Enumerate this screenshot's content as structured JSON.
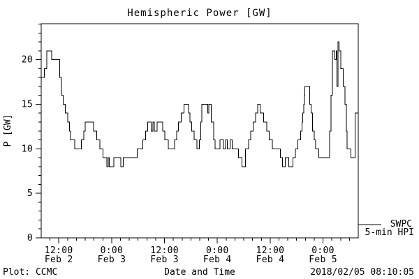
{
  "figure": {
    "background": "#ffffff",
    "foreground": "#000000"
  },
  "footer": {
    "left": "Plot: CCMC",
    "right": "2018/02/05 08:10:05"
  },
  "chart_data": {
    "type": "line",
    "subtype": "step",
    "title": "Hemispheric Power [GW]",
    "xlabel": "Date and Time",
    "ylabel": "P [GW]",
    "ylim": [
      0,
      24.04
    ],
    "grid": false,
    "y_major_ticks": [
      0,
      5,
      10,
      15,
      20
    ],
    "y_minor_step": 1,
    "x_range_hours": [
      0,
      72
    ],
    "x_hours_origin_label": "Feb 2 08:00",
    "x_minor_step_hours": 2,
    "x_ticks": [
      {
        "t": 4,
        "time": "12:00",
        "date": "Feb 2"
      },
      {
        "t": 16,
        "time": "0:00",
        "date": "Feb 3"
      },
      {
        "t": 28,
        "time": "12:00",
        "date": "Feb 3"
      },
      {
        "t": 40,
        "time": "0:00",
        "date": "Feb 4"
      },
      {
        "t": 52,
        "time": "12:00",
        "date": "Feb 4"
      },
      {
        "t": 64,
        "time": "0:00",
        "date": "Feb 5"
      }
    ],
    "legend": {
      "name": "SWPC",
      "sublabel": "5-min HPI",
      "position": "right-outside"
    },
    "line_color": "#000000",
    "series": [
      {
        "name": "SWPC 5-min HPI",
        "steps_hours_gw": [
          [
            0,
            18
          ],
          [
            0.75,
            19
          ],
          [
            1.25,
            21
          ],
          [
            2.4,
            20
          ],
          [
            4.2,
            18
          ],
          [
            4.6,
            16
          ],
          [
            5.0,
            15
          ],
          [
            5.5,
            14
          ],
          [
            6.0,
            13
          ],
          [
            6.4,
            12
          ],
          [
            6.7,
            11
          ],
          [
            7.6,
            10
          ],
          [
            9.1,
            11
          ],
          [
            9.7,
            12
          ],
          [
            10.0,
            13
          ],
          [
            11.9,
            12
          ],
          [
            12.6,
            11
          ],
          [
            13.3,
            10
          ],
          [
            14.0,
            9
          ],
          [
            14.9,
            8
          ],
          [
            15.2,
            9
          ],
          [
            15.5,
            8
          ],
          [
            16.5,
            9
          ],
          [
            18.1,
            8
          ],
          [
            18.6,
            9
          ],
          [
            21.8,
            10
          ],
          [
            23.1,
            11
          ],
          [
            23.7,
            12
          ],
          [
            24.2,
            13
          ],
          [
            25.0,
            12
          ],
          [
            25.4,
            13
          ],
          [
            25.7,
            12
          ],
          [
            26.3,
            13
          ],
          [
            27.6,
            12
          ],
          [
            28.1,
            11
          ],
          [
            28.9,
            10
          ],
          [
            30.3,
            11
          ],
          [
            30.8,
            12
          ],
          [
            31.2,
            13
          ],
          [
            31.8,
            14
          ],
          [
            32.4,
            15
          ],
          [
            33.5,
            14
          ],
          [
            33.8,
            13
          ],
          [
            34.2,
            12
          ],
          [
            34.7,
            11
          ],
          [
            35.4,
            10
          ],
          [
            35.9,
            11
          ],
          [
            36.2,
            13
          ],
          [
            36.5,
            15
          ],
          [
            37.8,
            14
          ],
          [
            38.1,
            15
          ],
          [
            38.6,
            13
          ],
          [
            39.2,
            11
          ],
          [
            39.5,
            10
          ],
          [
            40.6,
            11
          ],
          [
            41.4,
            10
          ],
          [
            41.9,
            11
          ],
          [
            42.3,
            10
          ],
          [
            42.9,
            11
          ],
          [
            43.4,
            10
          ],
          [
            44.8,
            9
          ],
          [
            45.6,
            8
          ],
          [
            46.4,
            10
          ],
          [
            47.1,
            11
          ],
          [
            47.6,
            12
          ],
          [
            48.1,
            13
          ],
          [
            48.7,
            14
          ],
          [
            49.2,
            15
          ],
          [
            49.7,
            14
          ],
          [
            50.5,
            13
          ],
          [
            51.2,
            12
          ],
          [
            51.8,
            11
          ],
          [
            52.5,
            10
          ],
          [
            54.3,
            9
          ],
          [
            54.8,
            8
          ],
          [
            55.4,
            9
          ],
          [
            56.2,
            8
          ],
          [
            57.2,
            9
          ],
          [
            57.7,
            10
          ],
          [
            58.3,
            11
          ],
          [
            58.9,
            12
          ],
          [
            59.2,
            13
          ],
          [
            59.4,
            14
          ],
          [
            59.6,
            15
          ],
          [
            59.8,
            16
          ],
          [
            59.9,
            17
          ],
          [
            61.0,
            15
          ],
          [
            61.3,
            14
          ],
          [
            61.6,
            12
          ],
          [
            62.0,
            11
          ],
          [
            62.3,
            10
          ],
          [
            63.0,
            9
          ],
          [
            65.5,
            12
          ],
          [
            65.8,
            16
          ],
          [
            66.1,
            21
          ],
          [
            66.7,
            20
          ],
          [
            67.0,
            21
          ],
          [
            67.2,
            17
          ],
          [
            67.4,
            22
          ],
          [
            67.6,
            21
          ],
          [
            68.0,
            19
          ],
          [
            68.6,
            17
          ],
          [
            69.0,
            15
          ],
          [
            69.3,
            12
          ],
          [
            69.5,
            10
          ],
          [
            70.3,
            9
          ],
          [
            71.3,
            14
          ],
          [
            72.0,
            14
          ]
        ]
      }
    ]
  }
}
